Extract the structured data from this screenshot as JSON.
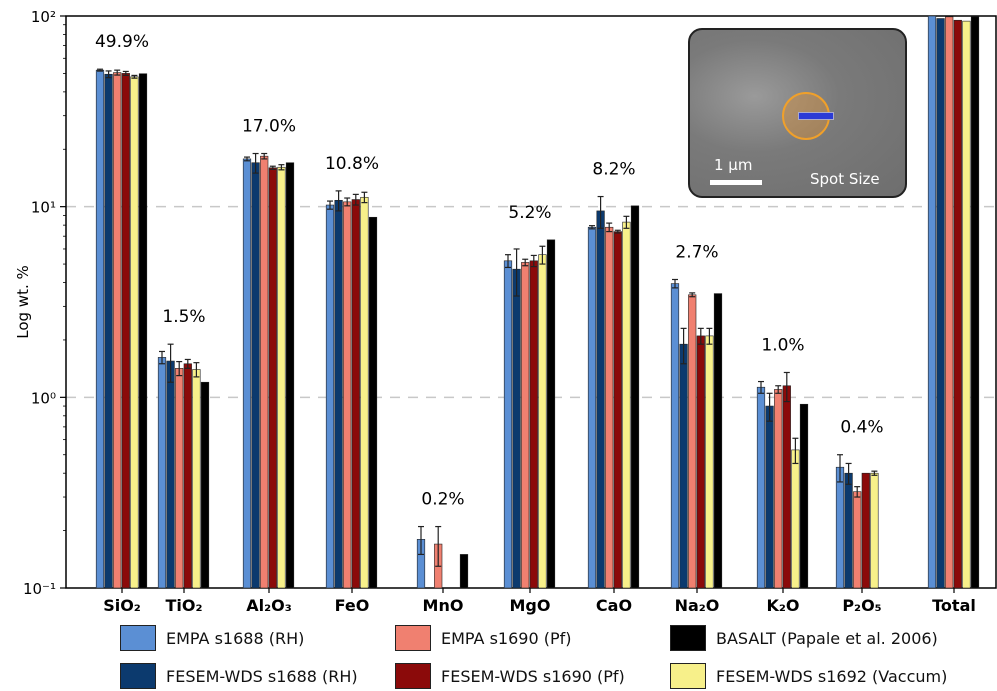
{
  "chart_data": {
    "type": "bar",
    "yscale": "log",
    "ylabel": "Log wt. %",
    "ylim": [
      0.1,
      100
    ],
    "yticks": [
      "10⁻¹",
      "10⁰",
      "10¹",
      "10²"
    ],
    "grid": "dashed horizontal at 1 and 10",
    "categories": [
      "SiO₂",
      "TiO₂",
      "Al₂O₃",
      "FeO",
      "MnO",
      "MgO",
      "CaO",
      "Na₂O",
      "K₂O",
      "P₂O₅",
      "Total"
    ],
    "annotations": [
      "49.9%",
      "1.5%",
      "17.0%",
      "10.8%",
      "0.2%",
      "5.2%",
      "8.2%",
      "2.7%",
      "1.0%",
      "0.4%",
      ""
    ],
    "series": [
      {
        "name": "EMPA s1688 (RH)",
        "color": "#5b8fd4",
        "values": [
          52.0,
          1.62,
          17.8,
          10.2,
          0.18,
          5.2,
          7.8,
          3.95,
          1.13,
          0.43,
          100
        ],
        "errors": [
          0.6,
          0.12,
          0.4,
          0.5,
          0.03,
          0.4,
          0.15,
          0.2,
          0.08,
          0.07,
          0
        ]
      },
      {
        "name": "FESEM-WDS s1688 (RH)",
        "color": "#0c3a6e",
        "values": [
          49.5,
          1.55,
          17.0,
          10.8,
          null,
          4.7,
          9.5,
          1.9,
          0.9,
          0.4,
          97
        ],
        "errors": [
          2.0,
          0.35,
          2.0,
          1.3,
          0,
          1.3,
          1.8,
          0.4,
          0.15,
          0.05,
          0
        ]
      },
      {
        "name": "EMPA s1690 (Pf)",
        "color": "#f08070",
        "values": [
          50.5,
          1.42,
          18.4,
          10.6,
          0.17,
          5.1,
          7.8,
          3.45,
          1.1,
          0.32,
          99
        ],
        "errors": [
          1.5,
          0.12,
          0.6,
          0.5,
          0.04,
          0.2,
          0.4,
          0.08,
          0.05,
          0.02,
          0
        ]
      },
      {
        "name": "FESEM-WDS s1690 (Pf)",
        "color": "#8b0a0a",
        "values": [
          50.0,
          1.5,
          16.0,
          10.9,
          null,
          5.2,
          7.4,
          2.1,
          1.15,
          0.4,
          95
        ],
        "errors": [
          1.2,
          0.08,
          0.3,
          0.7,
          0,
          0.35,
          0.12,
          0.2,
          0.2,
          0,
          0
        ]
      },
      {
        "name": "FESEM-WDS s1692 (Vaccum)",
        "color": "#f7f08a",
        "values": [
          48.0,
          1.4,
          16.1,
          11.2,
          null,
          5.6,
          8.3,
          2.1,
          0.53,
          0.4,
          94
        ],
        "errors": [
          0.8,
          0.12,
          0.5,
          0.7,
          0,
          0.6,
          0.6,
          0.2,
          0.08,
          0.01,
          0
        ]
      },
      {
        "name": "BASALT (Papale et al. 2006)",
        "color": "#000000",
        "values": [
          49.8,
          1.2,
          17.0,
          8.8,
          0.15,
          6.7,
          10.1,
          3.5,
          0.92,
          null,
          99
        ],
        "errors": [
          0,
          0,
          0,
          0,
          0,
          0,
          0,
          0,
          0,
          0,
          0
        ]
      }
    ]
  },
  "legend": {
    "items": [
      {
        "label": "EMPA s1688 (RH)",
        "color": "#5b8fd4"
      },
      {
        "label": "EMPA s1690 (Pf)",
        "color": "#f08070"
      },
      {
        "label": "BASALT (Papale et al. 2006)",
        "color": "#000000"
      },
      {
        "label": "FESEM-WDS s1688 (RH)",
        "color": "#0c3a6e"
      },
      {
        "label": "FESEM-WDS s1690 (Pf)",
        "color": "#8b0a0a"
      },
      {
        "label": "FESEM-WDS s1692 (Vaccum)",
        "color": "#f7f08a"
      }
    ]
  },
  "inset": {
    "scale_label": "1 µm",
    "spot_label": "Spot Size"
  }
}
